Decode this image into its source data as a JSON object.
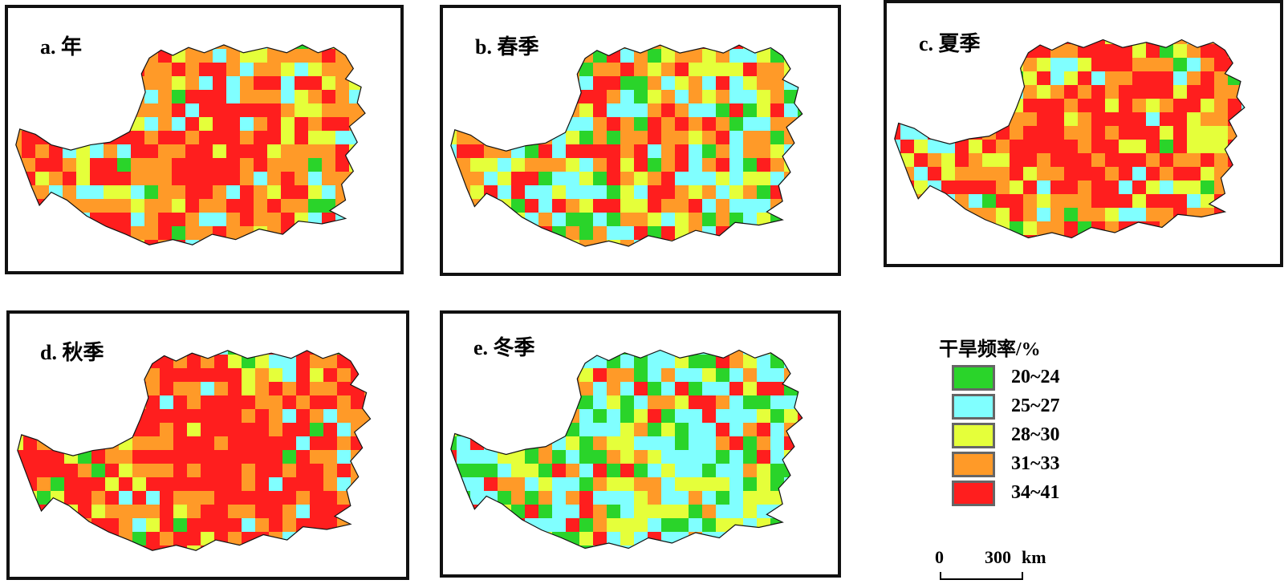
{
  "panels": [
    {
      "id": "a",
      "title": "a. 年",
      "seed": 11,
      "weights": [
        0.05,
        0.17,
        0.16,
        0.37,
        0.25
      ],
      "red_core": 0.35
    },
    {
      "id": "b",
      "title": "b. 春季",
      "seed": 23,
      "weights": [
        0.08,
        0.28,
        0.22,
        0.3,
        0.12
      ],
      "red_core": 0.05
    },
    {
      "id": "c",
      "title": "c. 夏季",
      "seed": 37,
      "weights": [
        0.04,
        0.12,
        0.2,
        0.29,
        0.35
      ],
      "red_core": 0.4
    },
    {
      "id": "d",
      "title": "d. 秋季",
      "seed": 41,
      "weights": [
        0.04,
        0.1,
        0.07,
        0.31,
        0.48
      ],
      "red_core": 0.55
    },
    {
      "id": "e",
      "title": "e. 冬季",
      "seed": 53,
      "weights": [
        0.22,
        0.4,
        0.14,
        0.15,
        0.09
      ],
      "red_core": 0.0
    }
  ],
  "legend": {
    "title": "干旱频率/%",
    "items": [
      {
        "label": "20~24",
        "color": "#2ad42a"
      },
      {
        "label": "25~27",
        "color": "#80ffff"
      },
      {
        "label": "28~30",
        "color": "#e5ff3a"
      },
      {
        "label": "31~33",
        "color": "#ff9a28"
      },
      {
        "label": "34~41",
        "color": "#ff1e1e"
      }
    ]
  },
  "scale": {
    "zero": "0",
    "distance": "300",
    "unit": "km"
  }
}
